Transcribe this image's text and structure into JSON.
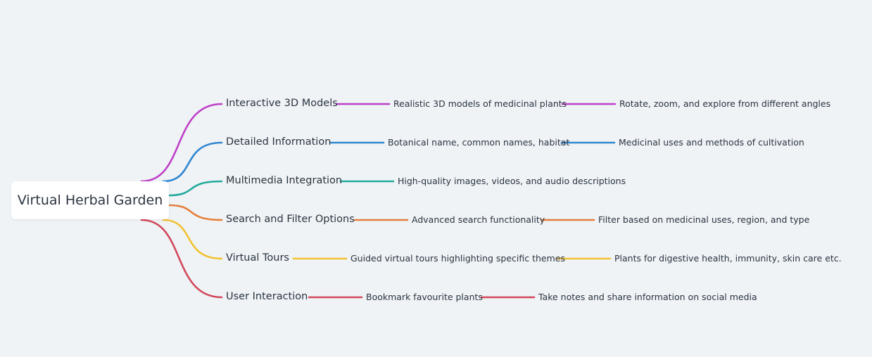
{
  "root": {
    "label": "Virtual Herbal Garden"
  },
  "branches": [
    {
      "label": "Interactive 3D Models",
      "color": "#be3fc7",
      "children": [
        "Realistic 3D models of medicinal plants",
        "Rotate, zoom, and explore from different angles"
      ]
    },
    {
      "label": "Detailed Information",
      "color": "#2f86d1",
      "children": [
        "Botanical name, common names, habitat",
        "Medicinal uses and methods of cultivation"
      ]
    },
    {
      "label": "Multimedia Integration",
      "color": "#22a99c",
      "children": [
        "High-quality images, videos, and audio descriptions"
      ]
    },
    {
      "label": "Search and Filter Options",
      "color": "#e57f3c",
      "children": [
        "Advanced search functionality",
        "Filter based on medicinal uses, region, and type"
      ]
    },
    {
      "label": "Virtual Tours",
      "color": "#f2c232",
      "children": [
        "Guided virtual tours highlighting specific themes",
        "Plants for digestive health, immunity, skin care etc."
      ]
    },
    {
      "label": "User Interaction",
      "color": "#d2485a",
      "children": [
        "Bookmark favourite plants",
        "Take notes and share information on social media"
      ]
    }
  ]
}
